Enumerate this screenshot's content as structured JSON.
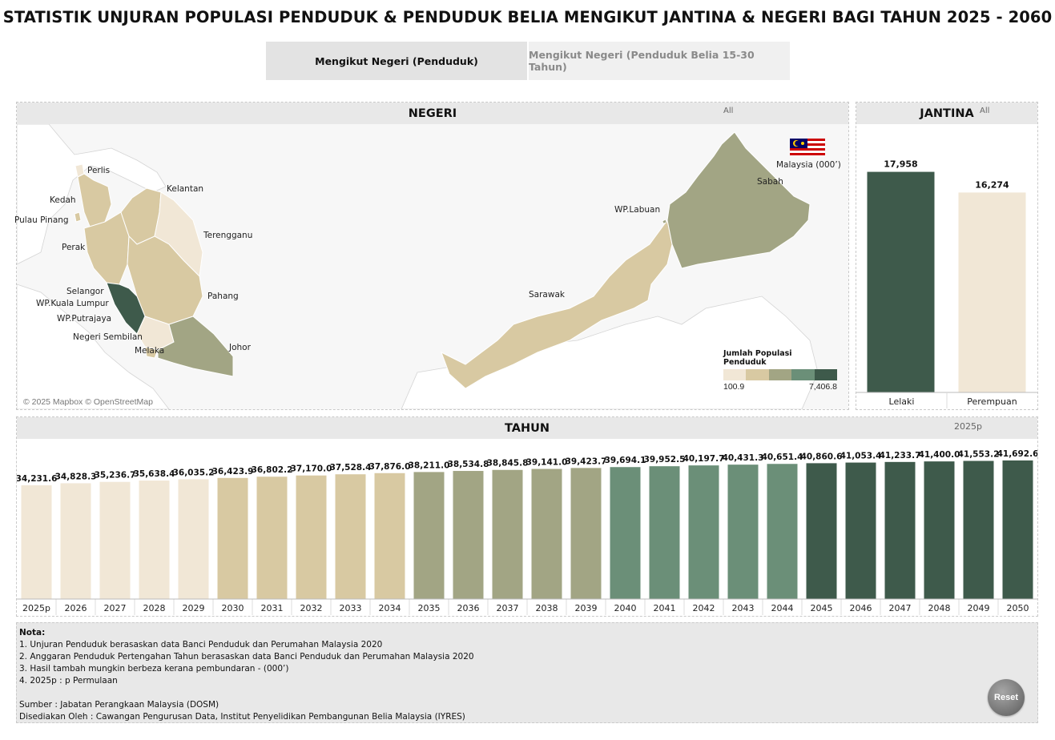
{
  "title": "STATISTIK UNJURAN POPULASI PENDUDUK & PENDUDUK BELIA MENGIKUT JANTINA & NEGERI BAGI TAHUN 2025 - 2060",
  "tabs": [
    {
      "label": "Mengikut Negeri (Penduduk)",
      "active": true
    },
    {
      "label": "Mengikut Negeri (Penduduk Belia 15-30 Tahun)",
      "active": false
    }
  ],
  "negeri": {
    "header": "NEGERI",
    "filter": "All",
    "country_label": "Malaysia (000’)",
    "attribution": "© 2025 Mapbox © OpenStreetMap",
    "state_labels": [
      "Perlis",
      "Kedah",
      "Pulau Pinang",
      "Perak",
      "Kelantan",
      "Terengganu",
      "Pahang",
      "Selangor",
      "WP.Kuala Lumpur",
      "WP.Putrajaya",
      "Negeri Sembilan",
      "Melaka",
      "Johor",
      "Sarawak",
      "WP.Labuan",
      "Sabah"
    ],
    "legend": {
      "title": "Jumlah Populasi Penduduk",
      "min": "100.9",
      "max": "7,406.8"
    }
  },
  "jantina": {
    "header": "JANTINA",
    "filter": "All"
  },
  "tahun": {
    "header": "TAHUN",
    "filter": "2025p"
  },
  "colors": {
    "ramp": [
      "#f1e7d6",
      "#d8c9a2",
      "#a2a584",
      "#6b8f78",
      "#3e5a4b"
    ],
    "header_bg": "#e8e8e8"
  },
  "chart_data": [
    {
      "type": "bar",
      "categories": [
        "Lelaki",
        "Perempuan"
      ],
      "values": [
        17958,
        16274
      ],
      "data_labels": [
        "17,958",
        "16,274"
      ],
      "colors": [
        "#3e5a4b",
        "#f1e7d6"
      ],
      "ylim": [
        0,
        20000
      ]
    },
    {
      "type": "bar",
      "categories": [
        "2025p",
        "2026",
        "2027",
        "2028",
        "2029",
        "2030",
        "2031",
        "2032",
        "2033",
        "2034",
        "2035",
        "2036",
        "2037",
        "2038",
        "2039",
        "2040",
        "2041",
        "2042",
        "2043",
        "2044",
        "2045",
        "2046",
        "2047",
        "2048",
        "2049",
        "2050"
      ],
      "values": [
        34231.6,
        34828.3,
        35236.7,
        35638.4,
        36035.2,
        36423.9,
        36802.2,
        37170.0,
        37528.4,
        37876.0,
        38211.0,
        38534.8,
        38845.8,
        39141.0,
        39423.7,
        39694.1,
        39952.5,
        40197.7,
        40431.3,
        40651.4,
        40860.6,
        41053.4,
        41233.7,
        41400.0,
        41553.2,
        41692.6
      ],
      "data_labels": [
        "34,231.6",
        "34,828.3",
        "35,236.7",
        "35,638.4",
        "36,035.2",
        "36,423.9",
        "36,802.2",
        "37,170.0",
        "37,528.4",
        "37,876.0",
        "38,211.0",
        "38,534.8",
        "38,845.8",
        "39,141.0",
        "39,423.7",
        "39,694.1",
        "39,952.5",
        "40,197.7",
        "40,431.3",
        "40,651.4",
        "40,860.6",
        "41,053.4",
        "41,233.7",
        "41,400.0",
        "41,553.2",
        "41,692.6"
      ],
      "ylim": [
        0,
        43000
      ]
    }
  ],
  "nota": {
    "title": "Nota:",
    "lines": [
      "1. Unjuran Penduduk berasaskan data Banci Penduduk dan Perumahan Malaysia 2020",
      "2. Anggaran Penduduk Pertengahan Tahun berasaskan data Banci Penduduk dan Perumahan Malaysia 2020",
      "3. Hasil tambah mungkin berbeza kerana pembundaran - (000’)",
      "4. 2025p : p Permulaan"
    ],
    "source": "Sumber : Jabatan Perangkaan Malaysia (DOSM)",
    "prepared_by": "Disediakan Oleh : Cawangan Pengurusan Data, Institut Penyelidikan Pembangunan Belia Malaysia (IYRES)",
    "reset_label": "Reset"
  }
}
